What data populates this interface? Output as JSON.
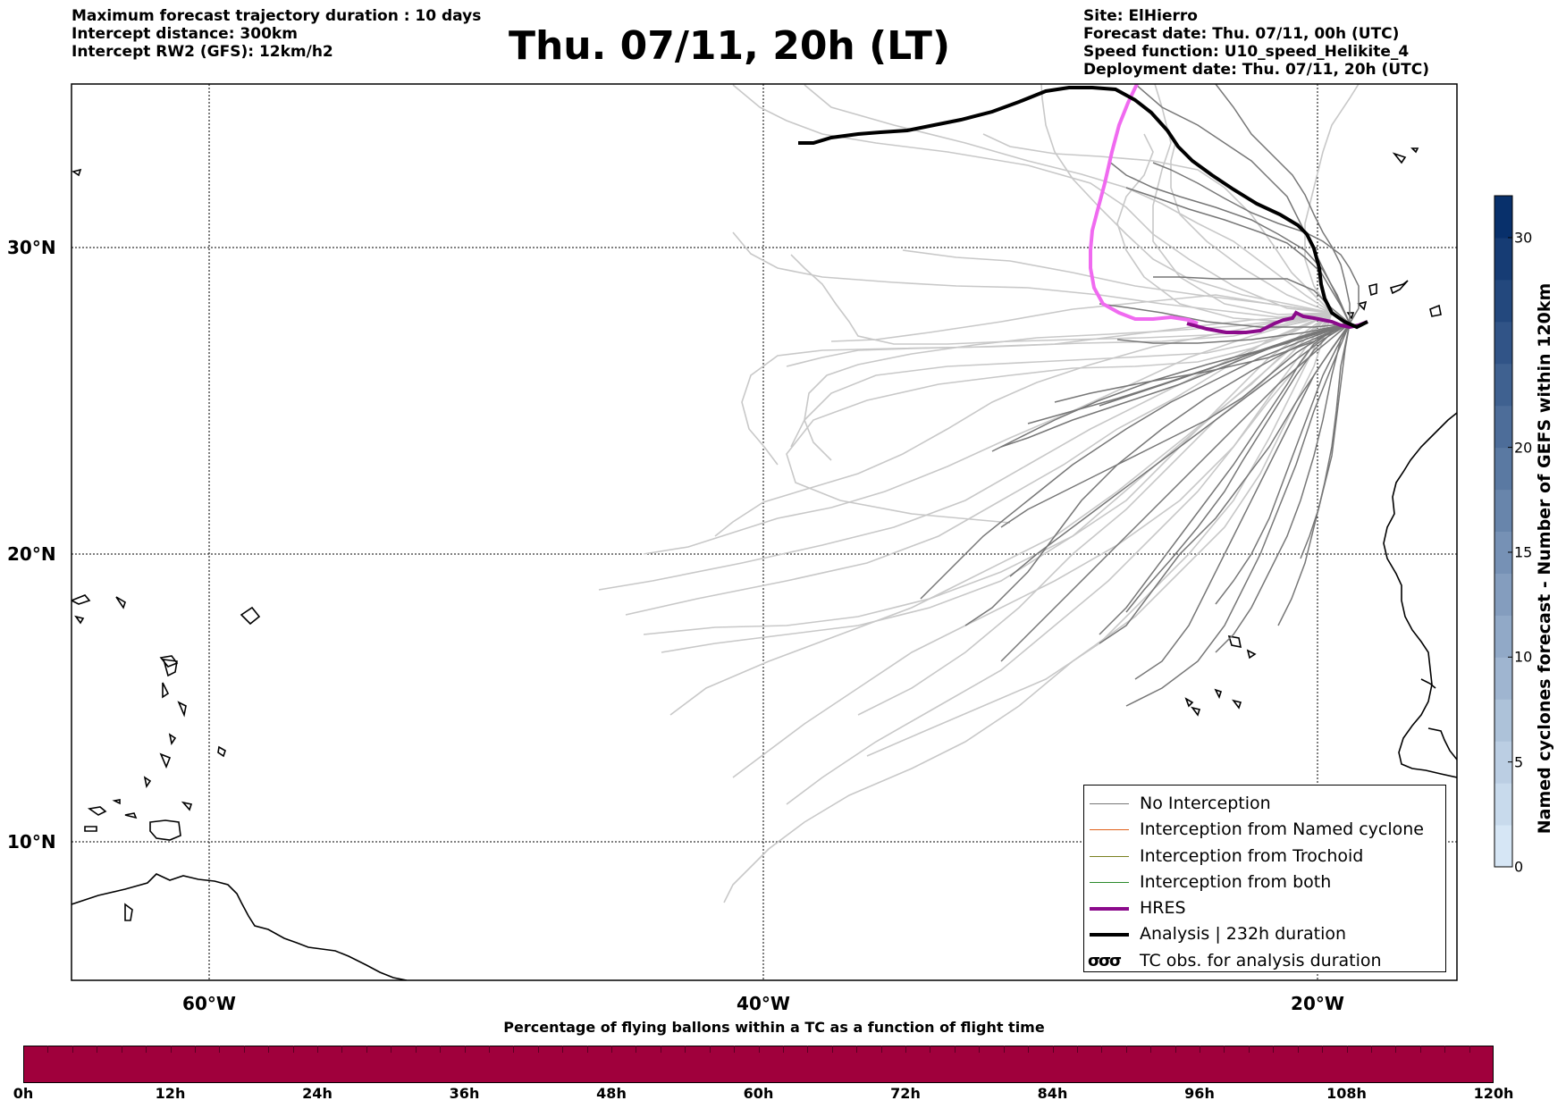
{
  "header": {
    "left_lines": [
      "Maximum forecast trajectory duration : 10 days",
      "Intercept distance: 300km",
      "Intercept RW2 (GFS):  12km/h2"
    ],
    "title": "Thu. 07/11, 20h (LT)",
    "right_lines": [
      "Site: ElHierro",
      "Forecast date: Thu. 07/11, 00h (UTC)",
      "Speed function: U10_speed_Helikite_4",
      "Deployment date: Thu. 07/11, 20h (UTC)"
    ]
  },
  "map": {
    "lon_range": [
      -65,
      15
    ],
    "lat_range": [
      5,
      34.4
    ],
    "lat_labels": [
      "30°N",
      "20°N",
      "10°N"
    ],
    "lon_labels": [
      "60°W",
      "40°W",
      "20°W"
    ],
    "colors": {
      "no_interception": "#777777",
      "named_cyclone": "#e0601a",
      "trochoid": "#7a8020",
      "both": "#2a8a2a",
      "hres": "#8b0a8b",
      "analysis": "#000000",
      "faded": "#c8c8c8",
      "hres_early": "#f06af0"
    }
  },
  "legend": {
    "items": [
      "No Interception",
      "Interception from Named cyclone",
      "Interception from Trochoid",
      "Interception from both",
      "HRES",
      "Analysis | 232h duration",
      "TC obs. for analysis duration"
    ],
    "tc_glyph": "σσσ"
  },
  "colorbar_vertical": {
    "label": "Named cyclones forecast - Number of GEFS within 120km",
    "ticks": [
      "0",
      "5",
      "10",
      "15",
      "20",
      "30"
    ],
    "tick_values": [
      0,
      5,
      10,
      15,
      20,
      30
    ],
    "max": 32
  },
  "colorbar_horizontal": {
    "title": "Percentage of flying ballons within a TC as a function of flight time",
    "ticks": [
      "0h",
      "12h",
      "24h",
      "36h",
      "48h",
      "60h",
      "72h",
      "84h",
      "96h",
      "108h",
      "120h"
    ],
    "color": "#a0003c"
  }
}
